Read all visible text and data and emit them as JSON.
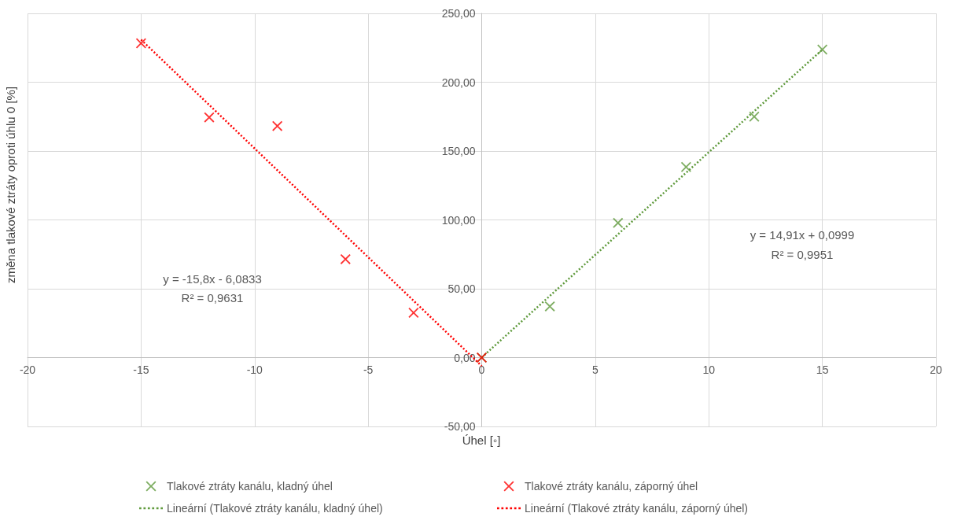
{
  "chart_data": {
    "type": "scatter",
    "ylabel": "změna tlakové ztráty oproti úhlu 0 [%]",
    "xlabel": "Úhel [◦]",
    "xlim": [
      -20,
      20
    ],
    "xticks": [
      -20,
      -15,
      -10,
      -5,
      0,
      5,
      10,
      15,
      20
    ],
    "ylim": [
      -50,
      250
    ],
    "yticks": [
      {
        "value": -50,
        "label": "-50,00"
      },
      {
        "value": 0,
        "label": "0,00"
      },
      {
        "value": 50,
        "label": "50,00"
      },
      {
        "value": 100,
        "label": "100,00"
      },
      {
        "value": 150,
        "label": "150,00"
      },
      {
        "value": 200,
        "label": "200,00"
      },
      {
        "value": 250,
        "label": "250,00"
      }
    ],
    "grid": true,
    "legend": "bottom",
    "series": [
      {
        "name": "Tlakové ztráty kanálu, kladný úhel",
        "marker": "cross",
        "color": "#5f9a3c",
        "x": [
          0,
          3,
          6,
          9,
          12,
          15
        ],
        "values": [
          0,
          37.2,
          97.8,
          138.4,
          175,
          223.7
        ]
      },
      {
        "name": "Tlakové ztráty kanálu, záporný úhel",
        "marker": "cross",
        "color": "#ff0000",
        "x": [
          -15,
          -12,
          -9,
          -6,
          -3,
          0
        ],
        "values": [
          228.3,
          174.5,
          168.2,
          71.5,
          32.6,
          0
        ]
      },
      {
        "name": "Lineární (Tlakové ztráty kanálu, kladný úhel)",
        "type": "line",
        "marker": "none",
        "line_style": "dotted",
        "color": "#5f9a3c",
        "x": [
          0,
          15
        ],
        "values": [
          0.1,
          223.7
        ]
      },
      {
        "name": "Lineární (Tlakové ztráty kanálu, záporný úhel)",
        "type": "line",
        "marker": "none",
        "line_style": "dotted",
        "color": "#ff0000",
        "x": [
          -15,
          0
        ],
        "values": [
          230.9,
          -6.1
        ]
      }
    ],
    "annotations": [
      "y = 14,91x + 0,0999",
      "R² = 0,9951",
      "y = -15,8x - 6,0833",
      "R² = 0,9631"
    ]
  }
}
